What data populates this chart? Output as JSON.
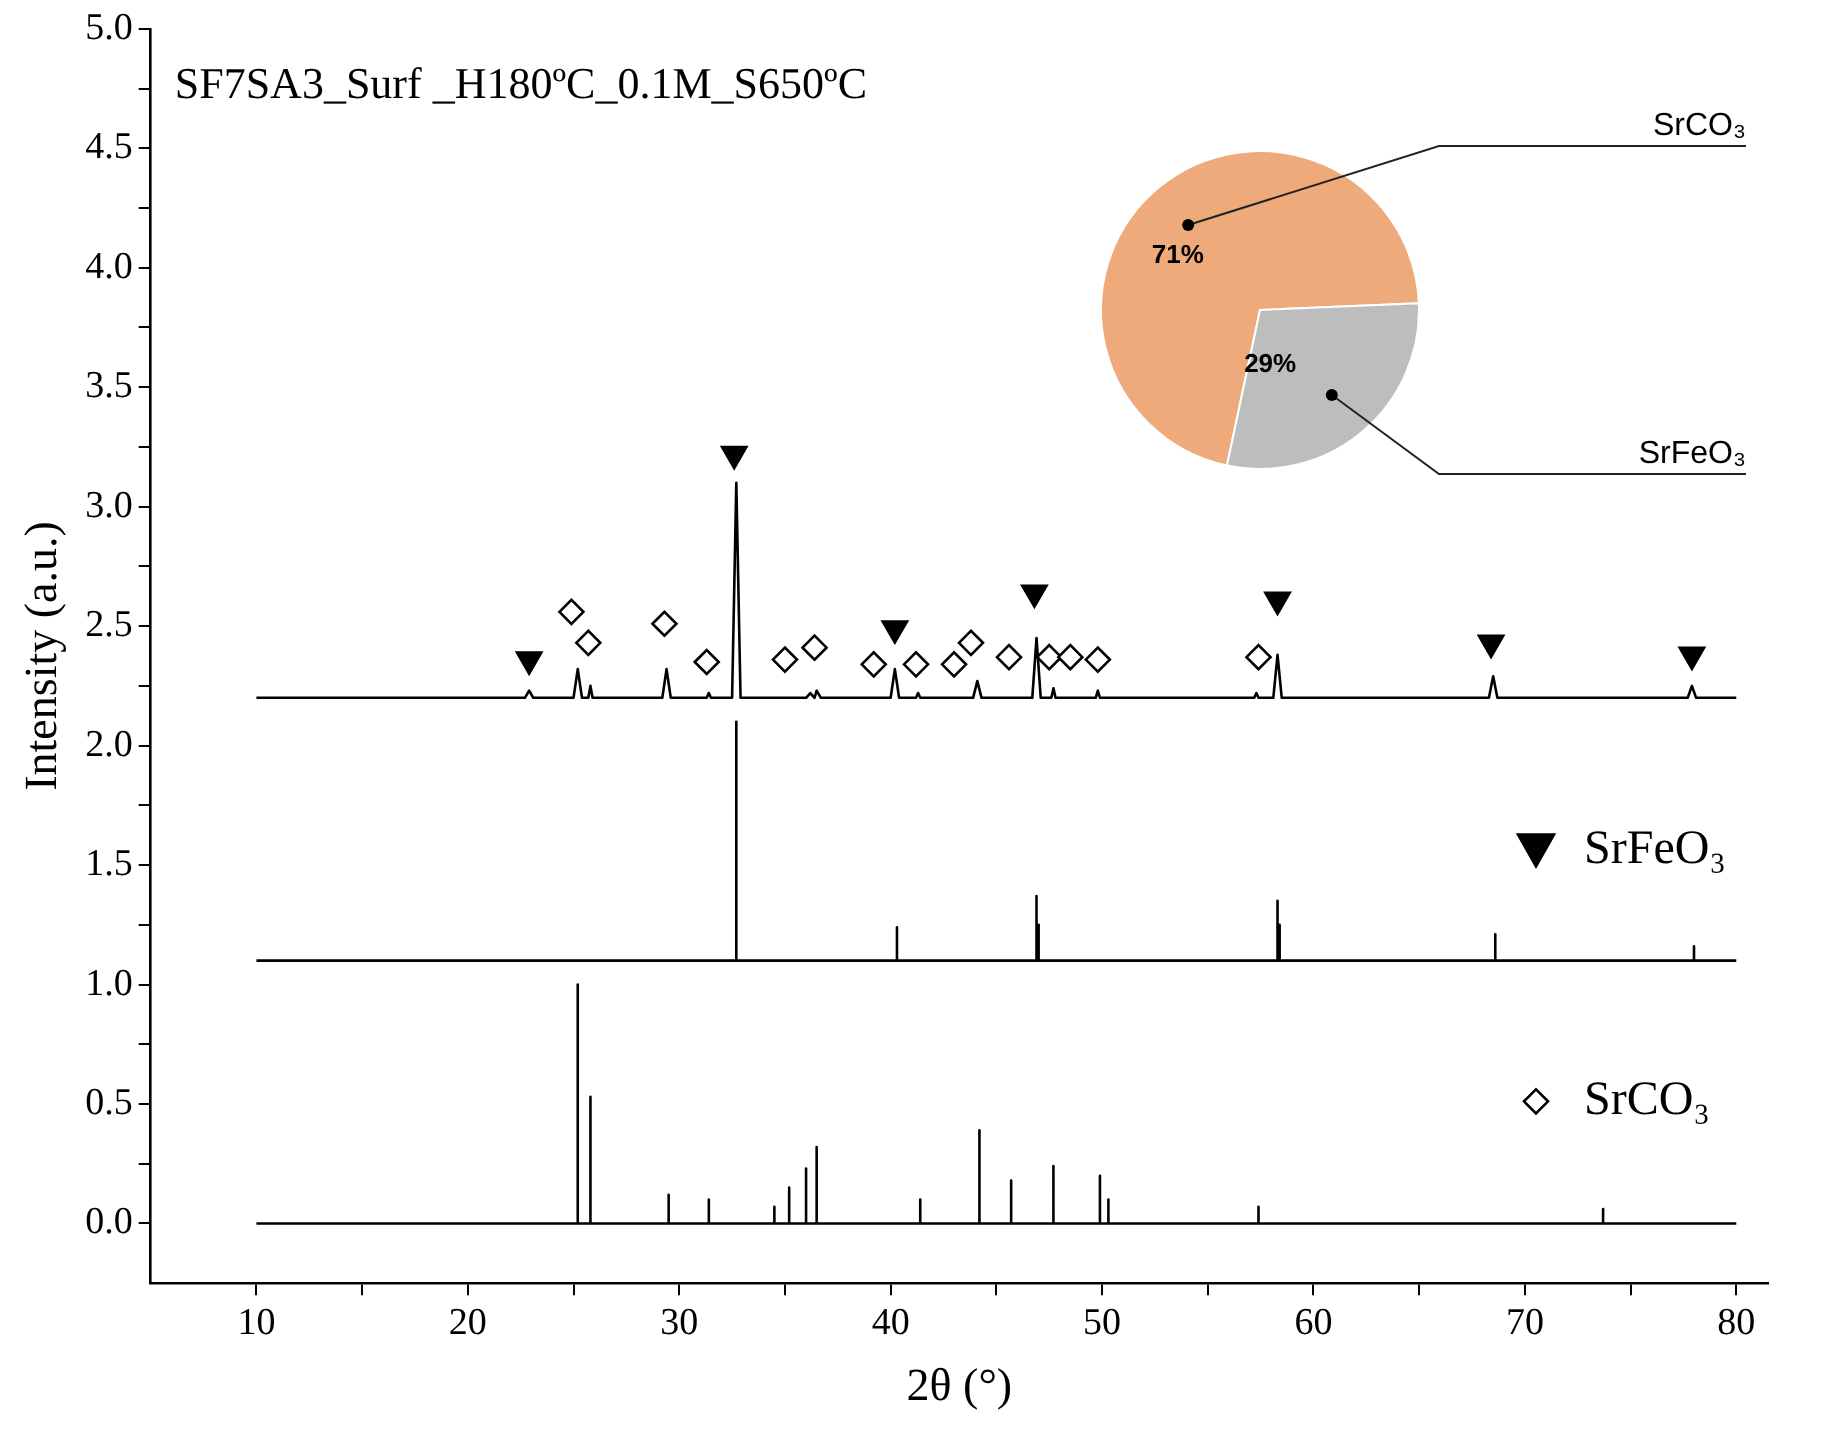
{
  "chart_data": [
    {
      "type": "line",
      "title": "SF7SA3_Surf _H180ºC_0.1M_S650ºC",
      "xlabel": "2θ (°)",
      "ylabel": "Intensity (a.u.)",
      "xlim": [
        5,
        81.5
      ],
      "xticks": [
        10,
        {
          "value": 15,
          "label": null
        },
        20,
        {
          "value": 25,
          "label": null
        },
        30,
        {
          "value": 35,
          "label": null
        },
        40,
        {
          "value": 45,
          "label": null
        },
        50,
        {
          "value": 55,
          "label": null
        },
        60,
        {
          "value": 65,
          "label": null
        },
        70,
        {
          "value": 75,
          "label": null
        },
        80
      ],
      "ylim": [
        -0.25,
        5
      ],
      "yticks": [
        {
          "value": 0,
          "label": "0.0"
        },
        {
          "value": 0.25,
          "label": null
        },
        {
          "value": 0.5,
          "label": "0.5"
        },
        {
          "value": 0.75,
          "label": null
        },
        {
          "value": 1,
          "label": "1.0"
        },
        {
          "value": 1.25,
          "label": null
        },
        {
          "value": 1.5,
          "label": "1.5"
        },
        {
          "value": 1.75,
          "label": null
        },
        {
          "value": 2,
          "label": "2.0"
        },
        {
          "value": 2.25,
          "label": null
        },
        {
          "value": 2.5,
          "label": "2.5"
        },
        {
          "value": 2.75,
          "label": null
        },
        {
          "value": 3,
          "label": "3.0"
        },
        {
          "value": 3.25,
          "label": null
        },
        {
          "value": 3.5,
          "label": "3.5"
        },
        {
          "value": 3.75,
          "label": null
        },
        {
          "value": 4,
          "label": "4.0"
        },
        {
          "value": 4.25,
          "label": null
        },
        {
          "value": 4.5,
          "label": "4.5"
        },
        {
          "value": 4.75,
          "label": null
        },
        {
          "value": 5,
          "label": "5.0"
        }
      ],
      "grid": false,
      "legend": "right",
      "series": [
        {
          "type": "line",
          "color": "#000000",
          "x": [
            10,
            22.7,
            22.9,
            23.1,
            25.0,
            25.2,
            25.4,
            25.7,
            25.8,
            25.9,
            29.2,
            29.4,
            29.6,
            31.3,
            31.4,
            31.5,
            32.5,
            32.7,
            32.9,
            36.0,
            36.2,
            36.4,
            36.5,
            36.7,
            40.0,
            40.2,
            40.4,
            41.2,
            41.3,
            41.4,
            43.9,
            44.1,
            44.3,
            46.7,
            46.9,
            47.1,
            47.6,
            47.7,
            47.8,
            49.7,
            49.8,
            49.9,
            57.2,
            57.3,
            57.4,
            58.1,
            58.3,
            58.5,
            68.3,
            68.5,
            68.7,
            77.7,
            77.9,
            78.1,
            80
          ],
          "values": [
            2.2,
            2.2,
            2.23,
            2.2,
            2.2,
            2.32,
            2.2,
            2.2,
            2.25,
            2.2,
            2.2,
            2.32,
            2.2,
            2.2,
            2.22,
            2.2,
            2.2,
            3.1,
            2.2,
            2.2,
            2.22,
            2.2,
            2.23,
            2.2,
            2.2,
            2.32,
            2.2,
            2.2,
            2.22,
            2.2,
            2.2,
            2.27,
            2.2,
            2.2,
            2.45,
            2.2,
            2.2,
            2.24,
            2.2,
            2.2,
            2.23,
            2.2,
            2.2,
            2.22,
            2.2,
            2.2,
            2.38,
            2.2,
            2.2,
            2.29,
            2.2,
            2.2,
            2.25,
            2.2,
            2.2
          ]
        },
        {
          "type": "line",
          "color": "#000000",
          "x": [
            10,
            32.7,
            32.7,
            32.7,
            40.3,
            40.3,
            40.3,
            46.9,
            46.9,
            46.9,
            47.0,
            47.0,
            47.0,
            58.3,
            58.3,
            58.3,
            58.4,
            58.4,
            58.4,
            68.6,
            68.6,
            68.6,
            78.0,
            78.0,
            78.0,
            80
          ],
          "values": [
            1.1,
            1.1,
            2.1,
            1.1,
            1.1,
            1.24,
            1.1,
            1.1,
            1.37,
            1.1,
            1.1,
            1.25,
            1.1,
            1.1,
            1.35,
            1.1,
            1.1,
            1.25,
            1.1,
            1.1,
            1.21,
            1.1,
            1.1,
            1.16,
            1.1,
            1.1
          ]
        },
        {
          "type": "line",
          "color": "#000000",
          "x": [
            10,
            25.2,
            25.2,
            25.2,
            25.8,
            25.8,
            25.8,
            29.5,
            29.5,
            29.5,
            31.4,
            31.4,
            31.4,
            34.5,
            34.5,
            34.5,
            35.2,
            35.2,
            35.2,
            36.0,
            36.0,
            36.0,
            36.5,
            36.5,
            36.5,
            41.4,
            41.4,
            41.4,
            44.2,
            44.2,
            44.2,
            45.7,
            45.7,
            45.7,
            47.7,
            47.7,
            47.7,
            49.9,
            49.9,
            49.9,
            50.3,
            50.3,
            50.3,
            57.4,
            57.4,
            57.4,
            73.7,
            73.7,
            73.7,
            80
          ],
          "values": [
            0,
            0,
            1.0,
            0,
            0,
            0.53,
            0,
            0,
            0.12,
            0,
            0,
            0.1,
            0,
            0,
            0.07,
            0,
            0,
            0.15,
            0,
            0,
            0.23,
            0,
            0,
            0.32,
            0,
            0,
            0.1,
            0,
            0,
            0.39,
            0,
            0,
            0.18,
            0,
            0,
            0.24,
            0,
            0,
            0.2,
            0,
            0,
            0.1,
            0,
            0,
            0.07,
            0,
            0,
            0.06,
            0,
            0
          ]
        },
        {
          "type": "scatter",
          "name": "SrFeO₃",
          "marker": "triangle",
          "color": "#000000",
          "x": [
            22.9,
            32.6,
            40.2,
            46.8,
            58.3,
            68.4,
            77.9
          ],
          "values": [
            2.36,
            3.22,
            2.49,
            2.64,
            2.61,
            2.43,
            2.38
          ]
        },
        {
          "type": "scatter",
          "name": "SrCO₃",
          "marker": "diamond",
          "color": "#000000",
          "x": [
            24.9,
            25.7,
            29.3,
            31.3,
            35.0,
            36.4,
            39.2,
            41.2,
            43.0,
            43.8,
            45.6,
            47.5,
            48.5,
            49.8,
            57.4
          ],
          "values": [
            2.56,
            2.43,
            2.51,
            2.35,
            2.36,
            2.41,
            2.34,
            2.34,
            2.34,
            2.43,
            2.37,
            2.37,
            2.37,
            2.36,
            2.37
          ]
        }
      ]
    },
    {
      "type": "pie",
      "categories": [
        "SrCO₃",
        "SrFeO₃"
      ],
      "values": [
        71,
        29
      ],
      "colors": [
        "#eeaa7a",
        "#bdbdbd"
      ],
      "value_labels": [
        "71%",
        "29%"
      ]
    }
  ]
}
